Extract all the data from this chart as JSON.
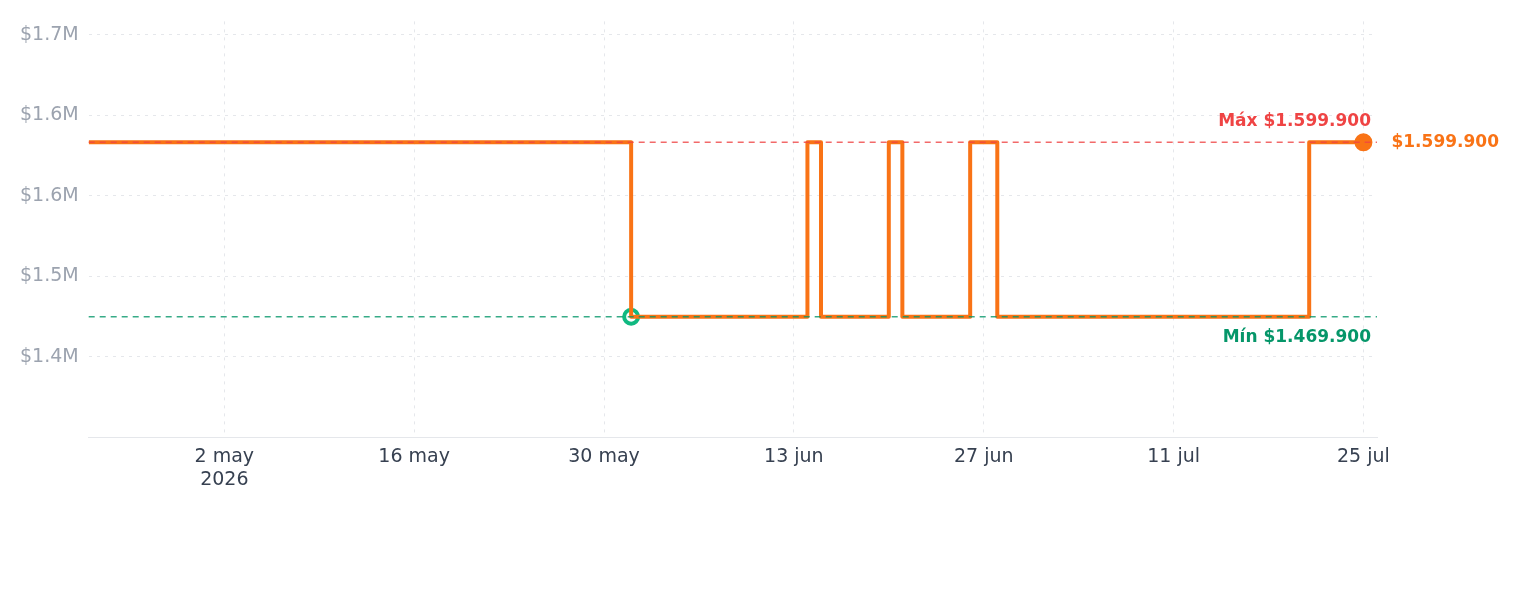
{
  "chart_data": {
    "type": "step",
    "x": [
      "2026-04-22",
      "2026-06-01",
      "2026-06-14",
      "2026-06-15",
      "2026-06-20",
      "2026-06-21",
      "2026-06-26",
      "2026-06-28",
      "2026-07-21",
      "2026-07-25"
    ],
    "series": [
      {
        "color": "#f97316",
        "values": [
          1599900,
          1469900,
          1599900,
          1469900,
          1599900,
          1469900,
          1599900,
          1469900,
          1599900,
          1599900
        ],
        "marker": "none"
      },
      {
        "type": "scatter",
        "color": "#10b981",
        "x": [
          "2026-06-01"
        ],
        "values": [
          1469900
        ],
        "marker": "circle"
      },
      {
        "type": "scatter",
        "color": "#f97316",
        "x": [
          "2026-07-25"
        ],
        "values": [
          1599900
        ],
        "marker": "circle"
      }
    ],
    "xlim": [
      "2026-04-22",
      "2026-07-26"
    ],
    "xticks": [
      {
        "value": "2026-05-02",
        "label": "2 may\n2026"
      },
      {
        "value": "2026-05-16",
        "label": "16 may"
      },
      {
        "value": "2026-05-30",
        "label": "30 may"
      },
      {
        "value": "2026-06-13",
        "label": "13 jun"
      },
      {
        "value": "2026-06-27",
        "label": "27 jun"
      },
      {
        "value": "2026-07-11",
        "label": "11 jul"
      },
      {
        "value": "2026-07-25",
        "label": "25 jul"
      }
    ],
    "ylim": [
      1380000,
      1690000
    ],
    "yticks": [
      {
        "value": 1440000,
        "label": "$1.4M"
      },
      {
        "value": 1500000,
        "label": "$1.5M"
      },
      {
        "value": 1560000,
        "label": "$1.6M"
      },
      {
        "value": 1620000,
        "label": "$1.6M"
      },
      {
        "value": 1680000,
        "label": "$1.7M"
      }
    ],
    "ref_lines": [
      {
        "axis": "y",
        "value": 1599900,
        "label": "Máx $1.599.900",
        "color": "#ef4444",
        "line_style": "dashed"
      },
      {
        "axis": "y",
        "value": 1469900,
        "label": "Mín $1.469.900",
        "color": "#059669",
        "line_style": "dashed"
      }
    ],
    "annotations": [
      {
        "text": "$1.599.900",
        "x": "2026-07-25",
        "y": 1599900
      }
    ],
    "grid": true,
    "legend": false
  }
}
